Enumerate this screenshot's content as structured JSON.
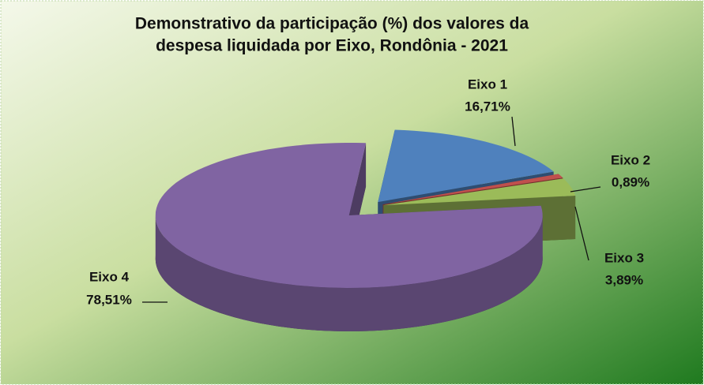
{
  "chart_data": {
    "type": "pie",
    "title": [
      "Demonstrativo da participação (%) dos valores da",
      "despesa liquidada por Eixo, Rondônia - 2021"
    ],
    "categories": [
      "Eixo 1",
      "Eixo 2",
      "Eixo 3",
      "Eixo 4"
    ],
    "values": [
      16.71,
      0.89,
      3.89,
      78.51
    ],
    "value_labels": [
      "16,71%",
      "0,89%",
      "3,89%",
      "78,51%"
    ],
    "colors": [
      "#4f81bd",
      "#c0504d",
      "#9bbb59",
      "#8064a2"
    ]
  }
}
